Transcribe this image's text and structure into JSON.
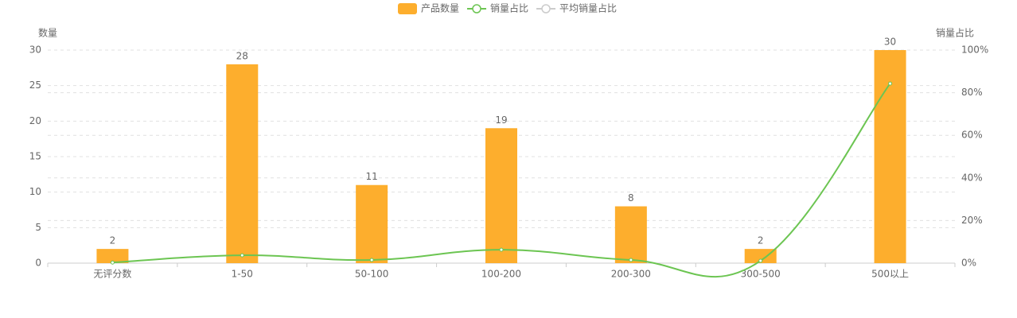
{
  "chart_data": {
    "type": "bar-line",
    "categories": [
      "无评分数",
      "1-50",
      "50-100",
      "100-200",
      "200-300",
      "300-500",
      "500以上"
    ],
    "series": [
      {
        "name": "产品数量",
        "type": "bar",
        "color": "#fdae2d",
        "values": [
          2,
          28,
          11,
          19,
          8,
          2,
          30
        ]
      },
      {
        "name": "销量占比",
        "type": "line",
        "axis": "y2",
        "color": "#6cc552",
        "values": [
          0.3,
          3.7,
          1.5,
          6.3,
          1.5,
          1.1,
          84.3
        ]
      },
      {
        "name": "平均销量占比",
        "type": "line",
        "axis": "y2",
        "color": "#cccccc",
        "visible": false
      }
    ],
    "y_label": "数量",
    "y2_label": "销量占比",
    "ylim": [
      0,
      30
    ],
    "yticks": [
      0,
      5,
      10,
      15,
      20,
      25,
      30
    ],
    "y2lim": [
      0,
      100
    ],
    "y2ticks": [
      {
        "value": 0,
        "label": "0%"
      },
      {
        "value": 20,
        "label": "20%"
      },
      {
        "value": 40,
        "label": "40%"
      },
      {
        "value": 60,
        "label": "60%"
      },
      {
        "value": 80,
        "label": "80%"
      },
      {
        "value": 100,
        "label": "100%"
      }
    ],
    "grid": true,
    "legend": "top"
  }
}
